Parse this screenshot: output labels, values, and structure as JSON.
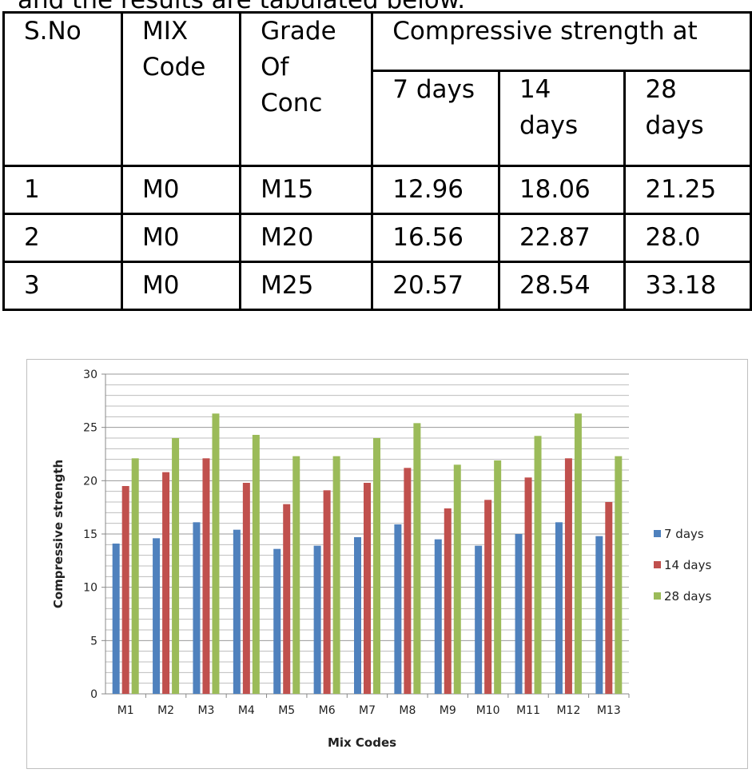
{
  "intro_text": "and the results are tabulated below.",
  "table": {
    "headers": {
      "sno": "S.No",
      "mix": [
        "MIX",
        "Code"
      ],
      "grade": [
        "Grade",
        "Of",
        "Conc"
      ],
      "group": "Compressive strength at",
      "d7": "7 days",
      "d14": [
        "14",
        "days"
      ],
      "d28": [
        "28",
        "days"
      ]
    },
    "rows": [
      [
        "1",
        "M0",
        "M15",
        "12.96",
        "18.06",
        "21.25"
      ],
      [
        "2",
        "M0",
        "M20",
        "16.56",
        "22.87",
        "28.0"
      ],
      [
        "3",
        "M0",
        "M25",
        "20.57",
        "28.54",
        "33.18"
      ]
    ]
  },
  "chart_data": {
    "type": "bar",
    "xlabel": "Mix Codes",
    "ylabel": "Compressive strength",
    "ylim": [
      0,
      30
    ],
    "yticks": [
      "0",
      "5",
      "10",
      "15",
      "20",
      "25",
      "30"
    ],
    "grid": true,
    "legend_position": "right",
    "categories": [
      "M1",
      "M2",
      "M3",
      "M4",
      "M5",
      "M6",
      "M7",
      "M8",
      "M9",
      "M10",
      "M11",
      "M12",
      "M13"
    ],
    "series": [
      {
        "name": "7 days",
        "color": "#4f81bd",
        "values": [
          14.1,
          14.6,
          16.1,
          15.4,
          13.6,
          13.9,
          14.7,
          15.9,
          14.5,
          13.9,
          15.0,
          16.1,
          14.8
        ]
      },
      {
        "name": "14 days",
        "color": "#c0504d",
        "values": [
          19.5,
          20.8,
          22.1,
          19.8,
          17.8,
          19.1,
          19.8,
          21.2,
          17.4,
          18.2,
          20.3,
          22.1,
          18.0
        ]
      },
      {
        "name": "28 days",
        "color": "#9bbb59",
        "values": [
          22.1,
          24.0,
          26.3,
          24.3,
          22.3,
          22.3,
          24.0,
          25.4,
          21.5,
          21.9,
          24.2,
          26.3,
          22.3
        ]
      }
    ]
  }
}
